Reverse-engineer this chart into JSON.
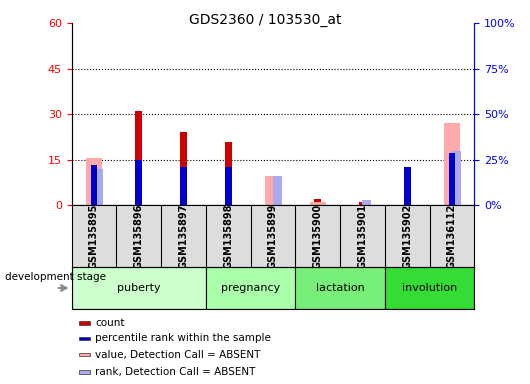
{
  "title": "GDS2360 / 103530_at",
  "samples": [
    "GSM135895",
    "GSM135896",
    "GSM135897",
    "GSM135898",
    "GSM135899",
    "GSM135900",
    "GSM135901",
    "GSM135902",
    "GSM136112"
  ],
  "count": [
    0,
    31,
    24,
    21,
    0,
    2,
    1,
    0,
    0
  ],
  "percentile_rank": [
    22,
    25,
    21,
    21,
    0,
    0,
    0,
    21,
    29
  ],
  "value_absent": [
    26,
    0,
    0,
    0,
    16,
    2,
    0,
    0,
    45
  ],
  "rank_absent": [
    20,
    0,
    0,
    0,
    16,
    0,
    3,
    0,
    30
  ],
  "stages": [
    {
      "label": "puberty",
      "start": 0,
      "end": 3,
      "color": "#ccffcc"
    },
    {
      "label": "pregnancy",
      "start": 3,
      "end": 5,
      "color": "#aaffaa"
    },
    {
      "label": "lactation",
      "start": 5,
      "end": 7,
      "color": "#77ee77"
    },
    {
      "label": "involution",
      "start": 7,
      "end": 9,
      "color": "#33dd33"
    }
  ],
  "ylim_left": [
    0,
    60
  ],
  "ylim_right": [
    0,
    100
  ],
  "yticks_left": [
    0,
    15,
    30,
    45,
    60
  ],
  "yticks_right": [
    0,
    25,
    50,
    75,
    100
  ],
  "ytick_labels_left": [
    "0",
    "15",
    "30",
    "45",
    "60"
  ],
  "ytick_labels_right": [
    "0%",
    "25%",
    "50%",
    "75%",
    "100%"
  ],
  "color_count": "#cc0000",
  "color_rank": "#0000cc",
  "color_value_absent": "#ffaaaa",
  "color_rank_absent": "#aaaaee",
  "figsize": [
    5.3,
    3.84
  ],
  "dpi": 100
}
